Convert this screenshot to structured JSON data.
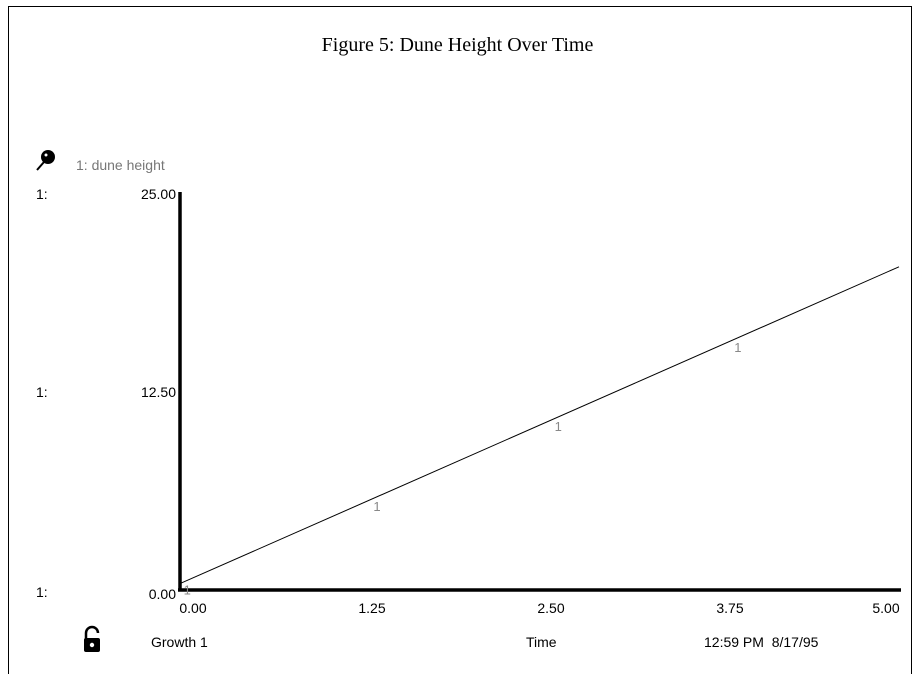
{
  "chart_data": {
    "type": "line",
    "title": "Figure 5:  Dune Height Over Time",
    "xlabel": "Time",
    "ylabel": "",
    "xlim": [
      0,
      5
    ],
    "ylim": [
      0,
      25
    ],
    "x_ticks": [
      "0.00",
      "1.25",
      "2.50",
      "3.75",
      "5.00"
    ],
    "y_ticks": [
      "0.00",
      "12.50",
      "25.00"
    ],
    "y_axis_prefix": "1:",
    "series": [
      {
        "name": "1: dune height",
        "marker_label": "1",
        "x": [
          0,
          5
        ],
        "y": [
          0.4,
          20.3
        ],
        "marker_x": [
          0.05,
          1.37,
          2.63,
          3.88
        ]
      }
    ],
    "grid": false,
    "legend": "top-left"
  },
  "footer": {
    "run_label": "Growth 1",
    "x_axis_label": "Time",
    "timestamp": "12:59 PM  8/17/95"
  },
  "icons": {
    "legend_icon": "pin-icon",
    "lock_icon": "unlocked-padlock-icon"
  }
}
